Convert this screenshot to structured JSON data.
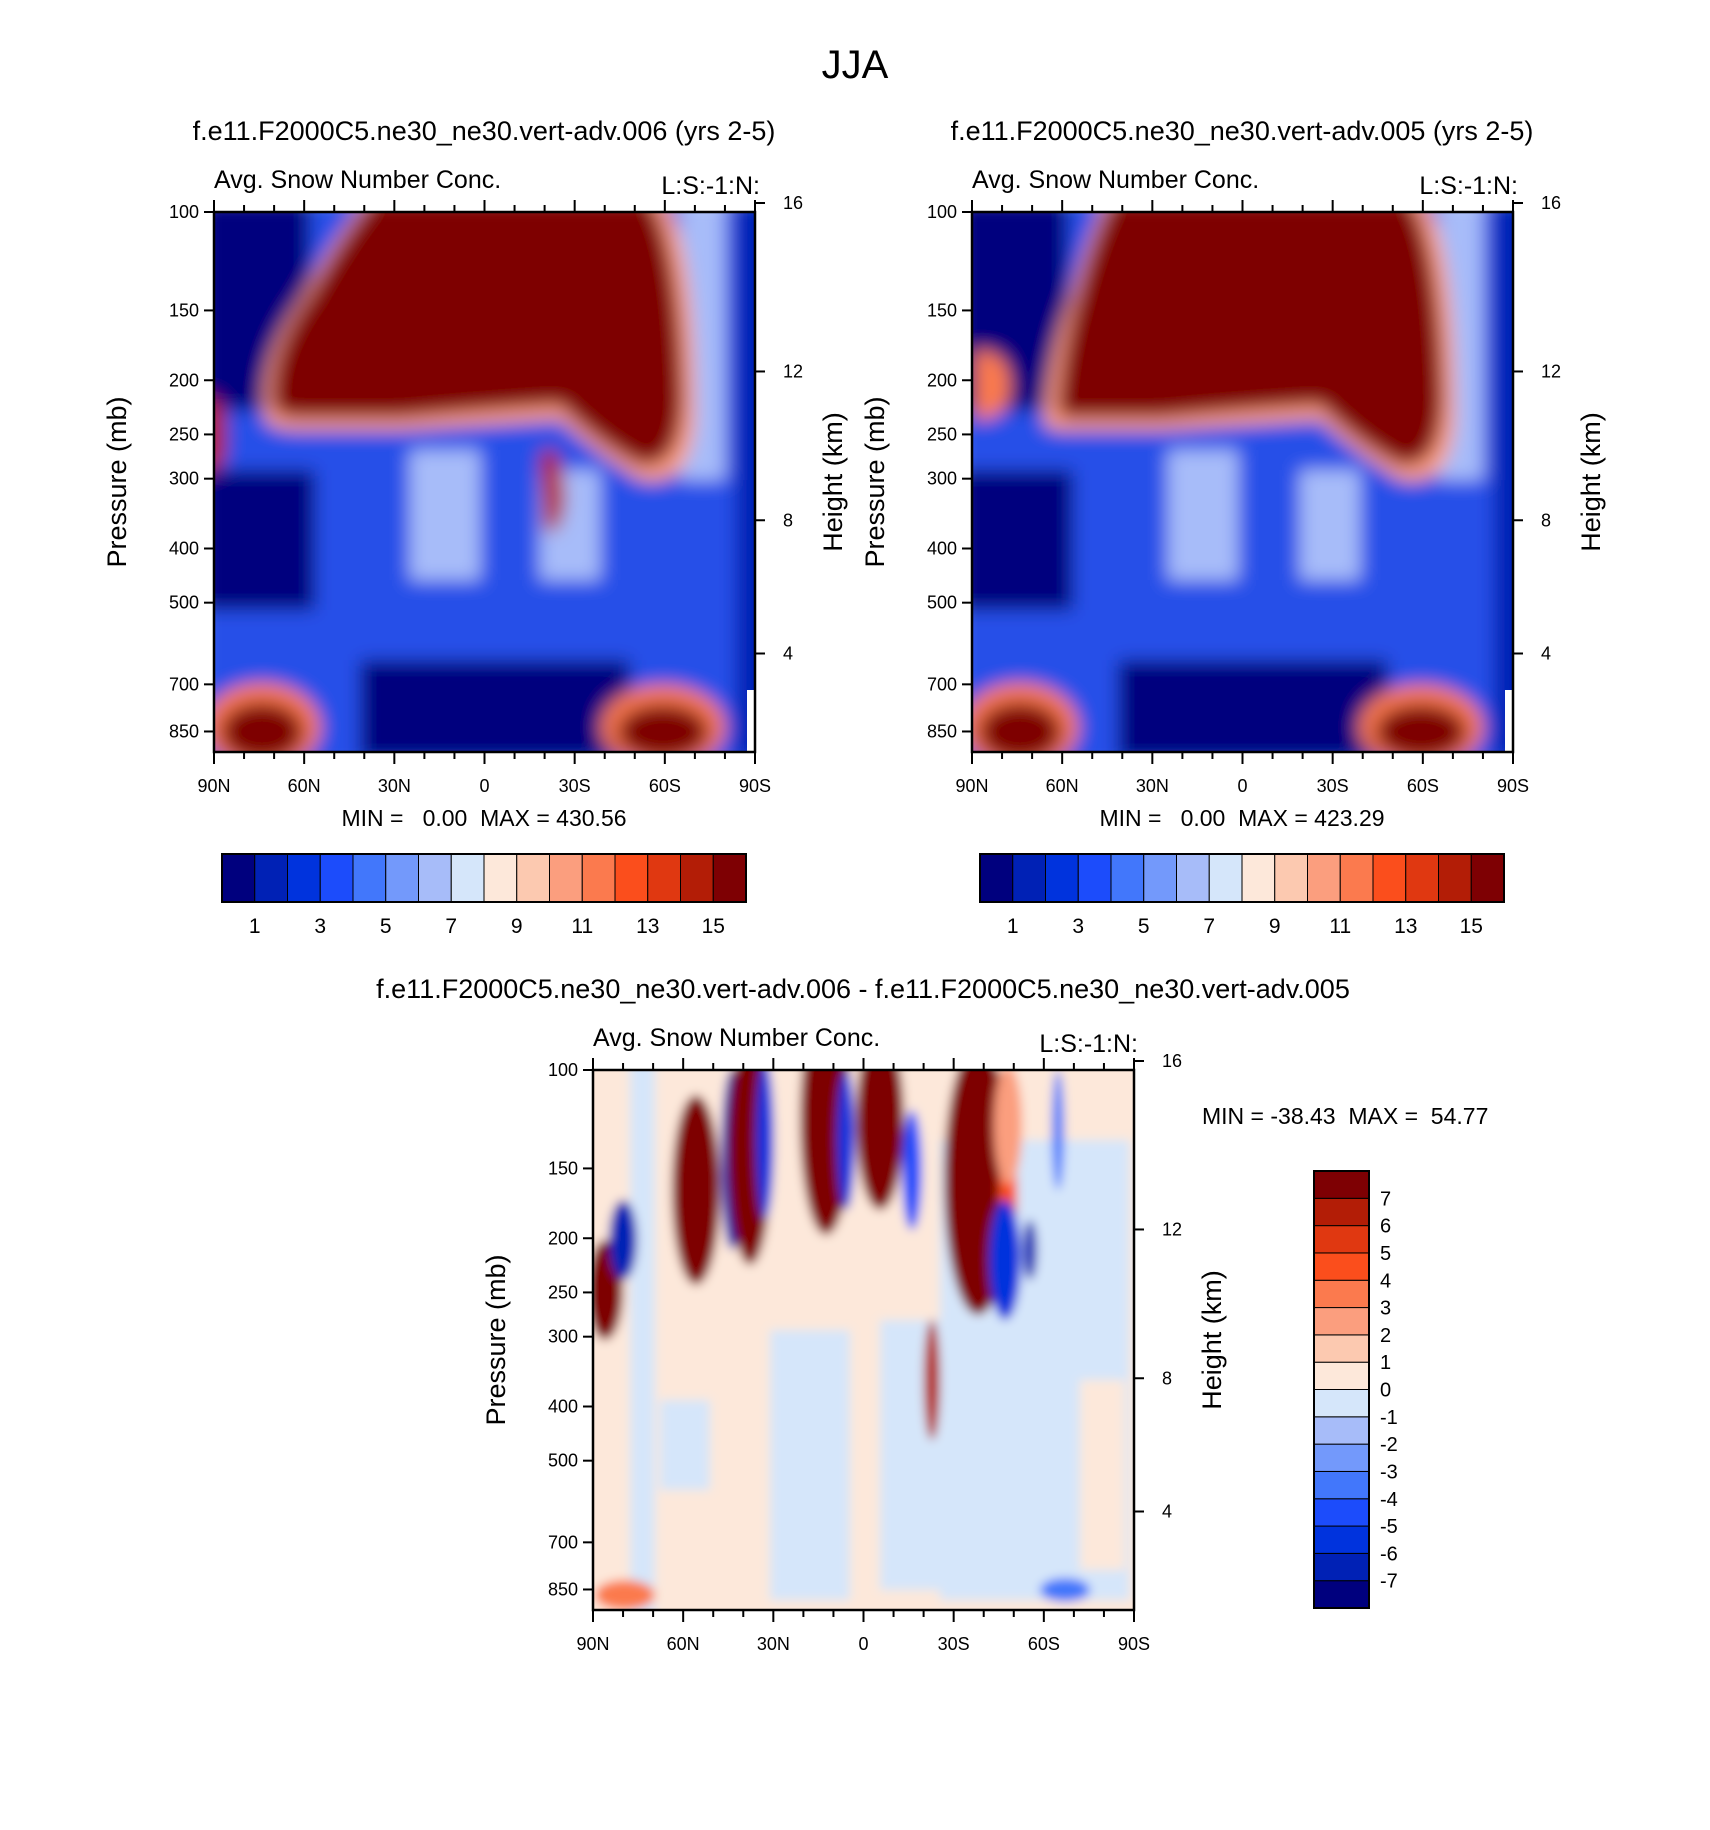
{
  "page_title": "JJA",
  "colors": {
    "seq_palette": [
      "#00007e",
      "#0021b5",
      "#0033dd",
      "#1c4cfb",
      "#4277fb",
      "#7399fb",
      "#a7bcf9",
      "#d5e6fa",
      "#fde8da",
      "#fcc9b0",
      "#fb9e7e",
      "#fb7a4e",
      "#fb4e1c",
      "#e03811",
      "#b31d06",
      "#7e0003"
    ],
    "diff_palette": [
      "#00007e",
      "#0021b5",
      "#0033dd",
      "#1c4cfb",
      "#4277fb",
      "#7399fb",
      "#a7bcf9",
      "#d5e6fa",
      "#fde8da",
      "#fcc9b0",
      "#fb9e7e",
      "#fb7a4e",
      "#fb4e1c",
      "#e03811",
      "#b31d06",
      "#7e0003"
    ]
  },
  "chart_data": [
    {
      "id": "panel1",
      "type": "heatmap",
      "title": "f.e11.F2000C5.ne30_ne30.vert-adv.006 (yrs 2-5)",
      "subtitle_left": "Avg. Snow Number Conc.",
      "subtitle_right": "L:S:-1:N:",
      "xlabel": "",
      "ylabel_left": "Pressure (mb)",
      "ylabel_right": "Height (km)",
      "x_ticks": [
        "90N",
        "60N",
        "30N",
        "0",
        "30S",
        "60S",
        "90S"
      ],
      "x_range": [
        90,
        -90
      ],
      "y_ticks": [
        "100",
        "150",
        "200",
        "250",
        "300",
        "400",
        "500",
        "700",
        "850"
      ],
      "y_range_mb": [
        100,
        925
      ],
      "height_ticks": [
        "16",
        "12",
        "8",
        "4"
      ],
      "min": "0.00",
      "max": "430.56",
      "stats_label": "MIN =   0.00  MAX = 430.56",
      "colorbar_labels": [
        "1",
        "3",
        "5",
        "7",
        "9",
        "11",
        "13",
        "15"
      ],
      "levels": [
        1,
        2,
        3,
        4,
        5,
        6,
        7,
        8,
        9,
        10,
        11,
        12,
        13,
        14,
        15
      ]
    },
    {
      "id": "panel2",
      "type": "heatmap",
      "title": "f.e11.F2000C5.ne30_ne30.vert-adv.005 (yrs 2-5)",
      "subtitle_left": "Avg. Snow Number Conc.",
      "subtitle_right": "L:S:-1:N:",
      "xlabel": "",
      "ylabel_left": "Pressure (mb)",
      "ylabel_right": "Height (km)",
      "x_ticks": [
        "90N",
        "60N",
        "30N",
        "0",
        "30S",
        "60S",
        "90S"
      ],
      "x_range": [
        90,
        -90
      ],
      "y_ticks": [
        "100",
        "150",
        "200",
        "250",
        "300",
        "400",
        "500",
        "700",
        "850"
      ],
      "y_range_mb": [
        100,
        925
      ],
      "height_ticks": [
        "16",
        "12",
        "8",
        "4"
      ],
      "min": "0.00",
      "max": "423.29",
      "stats_label": "MIN =   0.00  MAX = 423.29",
      "colorbar_labels": [
        "1",
        "3",
        "5",
        "7",
        "9",
        "11",
        "13",
        "15"
      ],
      "levels": [
        1,
        2,
        3,
        4,
        5,
        6,
        7,
        8,
        9,
        10,
        11,
        12,
        13,
        14,
        15
      ]
    },
    {
      "id": "panel3",
      "type": "heatmap",
      "title": "f.e11.F2000C5.ne30_ne30.vert-adv.006 - f.e11.F2000C5.ne30_ne30.vert-adv.005",
      "subtitle_left": "Avg. Snow Number Conc.",
      "subtitle_right": "L:S:-1:N:",
      "xlabel": "",
      "ylabel_left": "Pressure (mb)",
      "ylabel_right": "Height (km)",
      "x_ticks": [
        "90N",
        "60N",
        "30N",
        "0",
        "30S",
        "60S",
        "90S"
      ],
      "x_range": [
        90,
        -90
      ],
      "y_ticks": [
        "100",
        "150",
        "200",
        "250",
        "300",
        "400",
        "500",
        "700",
        "850"
      ],
      "y_range_mb": [
        100,
        925
      ],
      "height_ticks": [
        "16",
        "12",
        "8",
        "4"
      ],
      "min": "-38.43",
      "max": "54.77",
      "stats_label": "MIN = -38.43  MAX =  54.77",
      "colorbar_labels": [
        "7",
        "6",
        "5",
        "4",
        "3",
        "2",
        "1",
        "0",
        "-1",
        "-2",
        "-3",
        "-4",
        "-5",
        "-6",
        "-7"
      ],
      "levels": [
        -7,
        -6,
        -5,
        -4,
        -3,
        -2,
        -1,
        0,
        1,
        2,
        3,
        4,
        5,
        6,
        7
      ]
    }
  ]
}
